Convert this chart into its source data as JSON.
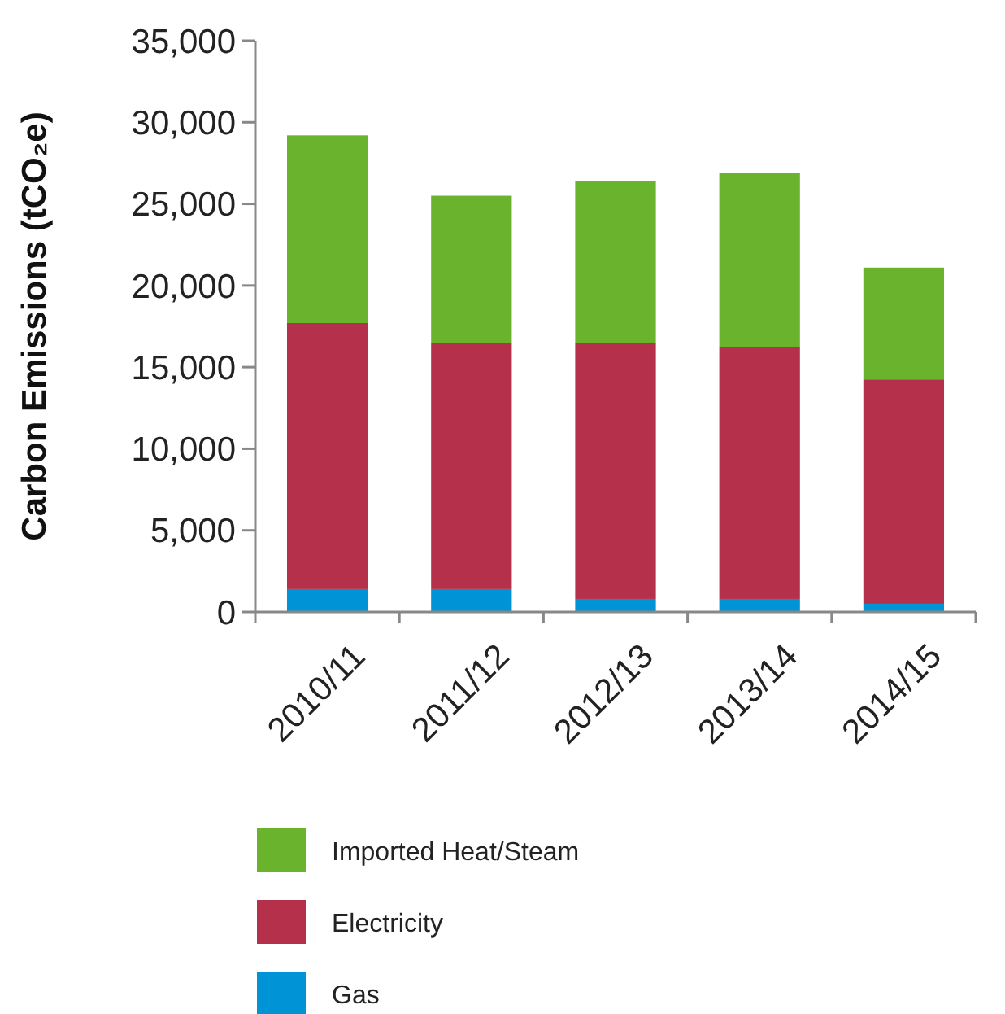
{
  "chart_data": {
    "type": "bar",
    "stacked": true,
    "ylabel": "Carbon Emissions (tCO₂e)",
    "categories": [
      "2010/11",
      "2011/12",
      "2012/13",
      "2013/14",
      "2014/15"
    ],
    "series": [
      {
        "name": "Gas",
        "color": "#0093d5",
        "values": [
          1400,
          1400,
          800,
          800,
          500
        ]
      },
      {
        "name": "Electricity",
        "color": "#b5314b",
        "values": [
          16300,
          15100,
          15700,
          15450,
          13750
        ]
      },
      {
        "name": "Imported Heat/Steam",
        "color": "#6ab42d",
        "values": [
          11500,
          9000,
          9900,
          10650,
          6850
        ]
      }
    ],
    "ylim": [
      0,
      35000
    ],
    "yticks": [
      {
        "value": 0,
        "label": "0"
      },
      {
        "value": 5000,
        "label": "5,000"
      },
      {
        "value": 10000,
        "label": "10,000"
      },
      {
        "value": 15000,
        "label": "15,000"
      },
      {
        "value": 20000,
        "label": "20,000"
      },
      {
        "value": 25000,
        "label": "25,000"
      },
      {
        "value": 30000,
        "label": "30,000"
      },
      {
        "value": 35000,
        "label": "35,000"
      }
    ],
    "grid": false,
    "legend": "bottom"
  }
}
